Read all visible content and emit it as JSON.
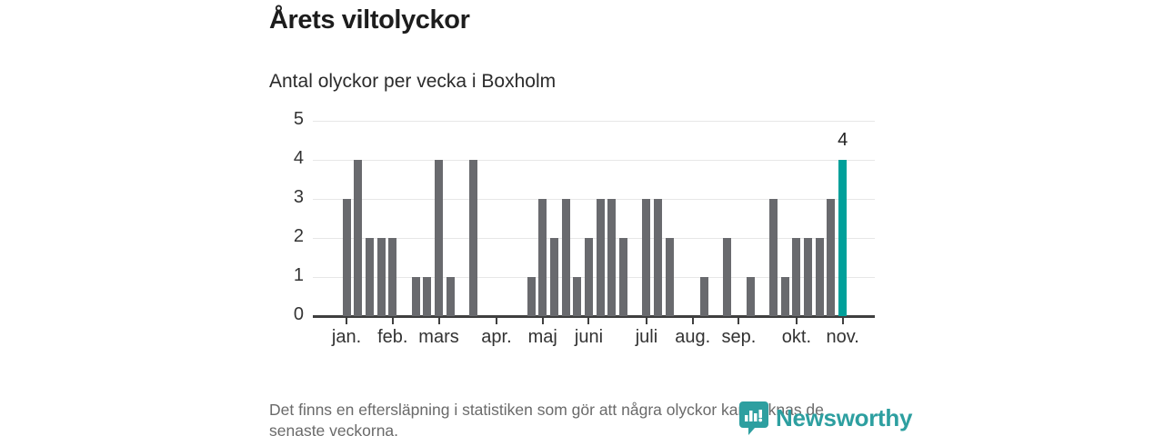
{
  "header": {
    "title": "Årets viltolyckor",
    "subtitle": "Antal olyckor per vecka i Boxholm"
  },
  "footer": {
    "note": "Det finns en eftersläpning i statistiken som gör att några olyckor kan saknas de senaste veckorna."
  },
  "branding": {
    "wordmark": "Newsworthy",
    "logo_icon": "newsworthy-pin-barchart-icon",
    "color": "#2d9fa0"
  },
  "colors": {
    "bar": "#696a6e",
    "highlight": "#00a09a",
    "axis": "#3f3f3f",
    "gridline": "#e7e7e7",
    "label_dark": "#222222",
    "text_muted": "#6a6a6a"
  },
  "chart_data": {
    "type": "bar",
    "title": "Årets viltolyckor",
    "subtitle": "Antal olyckor per vecka i Boxholm",
    "xlabel": "",
    "ylabel": "",
    "x_unit": "week of year (vecka 1–44)",
    "values": [
      3,
      4,
      2,
      2,
      2,
      0,
      1,
      1,
      4,
      1,
      0,
      4,
      0,
      0,
      0,
      0,
      1,
      3,
      2,
      3,
      1,
      2,
      3,
      3,
      2,
      0,
      3,
      3,
      2,
      0,
      0,
      1,
      0,
      2,
      0,
      1,
      0,
      3,
      1,
      2,
      2,
      2,
      3,
      4
    ],
    "highlight_last_bar": true,
    "last_value_label": "4",
    "ylim": [
      0,
      5
    ],
    "y_ticks": [
      0,
      1,
      2,
      3,
      4,
      5
    ],
    "grid": true,
    "legend": false,
    "month_ticks": [
      {
        "label": "jan.",
        "week": 1
      },
      {
        "label": "feb.",
        "week": 5
      },
      {
        "label": "mars",
        "week": 9
      },
      {
        "label": "apr.",
        "week": 14
      },
      {
        "label": "maj",
        "week": 18
      },
      {
        "label": "juni",
        "week": 22
      },
      {
        "label": "juli",
        "week": 27
      },
      {
        "label": "aug.",
        "week": 31
      },
      {
        "label": "sep.",
        "week": 35
      },
      {
        "label": "okt.",
        "week": 40
      },
      {
        "label": "nov.",
        "week": 44
      }
    ]
  }
}
